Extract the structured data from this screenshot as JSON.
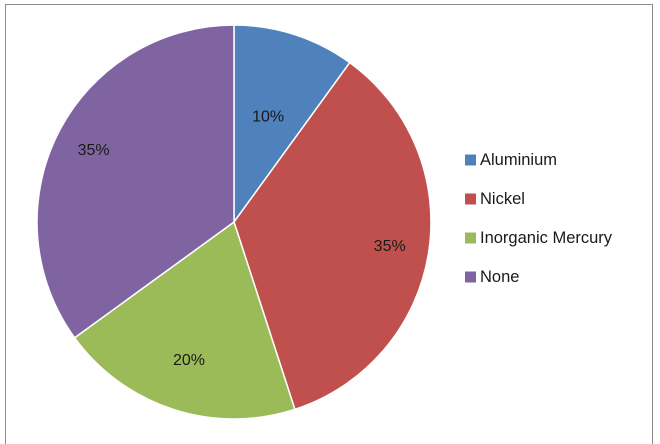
{
  "chart_data": {
    "type": "pie",
    "categories": [
      "Aluminium",
      "Nickel",
      "Inorganic Mercury",
      "None"
    ],
    "values": [
      10,
      35,
      20,
      35
    ],
    "labels": [
      "10%",
      "35%",
      "20%",
      "35%"
    ],
    "colors": [
      "#4f81bd",
      "#c0504d",
      "#9bbb59",
      "#8064a2"
    ],
    "start_angle_deg": 0,
    "direction": "clockwise",
    "legend_position": "right",
    "title": ""
  }
}
